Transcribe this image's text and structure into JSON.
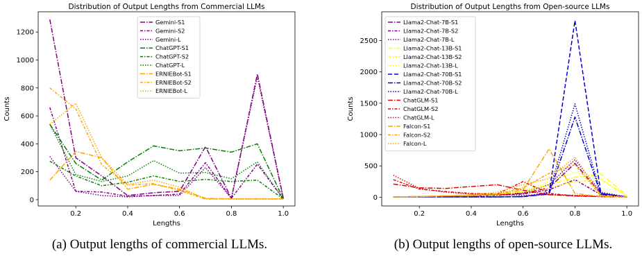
{
  "captions": [
    "(a) Output lengths of commercial LLMs.",
    "(b) Output lengths of open-source LLMs."
  ],
  "chart_data": [
    {
      "type": "line",
      "title": "Distribution of Output Lengths from Commercial LLMs",
      "xlabel": "Lengths",
      "ylabel": "Counts",
      "xlim": [
        0.055,
        1.045
      ],
      "ylim": [
        -45,
        1345
      ],
      "xticks": [
        0.2,
        0.4,
        0.6,
        0.8,
        1.0
      ],
      "xtick_labels": [
        "0.2",
        "0.4",
        "0.6",
        "0.8",
        "1.0"
      ],
      "yticks": [
        0,
        200,
        400,
        600,
        800,
        1000,
        1200
      ],
      "ytick_labels": [
        "0",
        "200",
        "400",
        "600",
        "800",
        "1000",
        "1200"
      ],
      "legend": "upper-center",
      "x": [
        0.1,
        0.2,
        0.3,
        0.4,
        0.5,
        0.6,
        0.7,
        0.8,
        0.9,
        1.0
      ],
      "series": [
        {
          "name": "Gemini-S1",
          "color": "#800080",
          "dash": "dashdot",
          "values": [
            1290,
            300,
            170,
            30,
            50,
            60,
            380,
            10,
            900,
            10
          ]
        },
        {
          "name": "Gemini-S2",
          "color": "#800080",
          "dash": "dashdot2",
          "values": [
            660,
            60,
            55,
            25,
            30,
            40,
            265,
            10,
            255,
            5
          ]
        },
        {
          "name": "Gemini-L",
          "color": "#800080",
          "dash": "dotted",
          "values": [
            310,
            60,
            30,
            20,
            30,
            30,
            230,
            10,
            880,
            5
          ]
        },
        {
          "name": "ChatGPT-S1",
          "color": "#008000",
          "dash": "dashdot",
          "values": [
            540,
            260,
            140,
            270,
            385,
            350,
            370,
            340,
            400,
            5
          ]
        },
        {
          "name": "ChatGPT-S2",
          "color": "#008000",
          "dash": "dashdot2",
          "values": [
            275,
            170,
            100,
            125,
            170,
            130,
            145,
            130,
            140,
            5
          ]
        },
        {
          "name": "ChatGPT-L",
          "color": "#008000",
          "dash": "dotted",
          "values": [
            540,
            180,
            130,
            170,
            280,
            190,
            195,
            150,
            270,
            5
          ]
        },
        {
          "name": "ERNIEBot-S1",
          "color": "#FFA500",
          "dash": "dashdot",
          "values": [
            140,
            345,
            300,
            75,
            110,
            75,
            10,
            5,
            5,
            5
          ]
        },
        {
          "name": "ERNIEBot-S2",
          "color": "#FFA500",
          "dash": "dashdot2",
          "values": [
            800,
            650,
            250,
            105,
            115,
            65,
            5,
            5,
            5,
            5
          ]
        },
        {
          "name": "ERNIEBot-L",
          "color": "#FFA500",
          "dash": "dotted",
          "values": [
            540,
            690,
            300,
            110,
            140,
            90,
            5,
            5,
            5,
            5
          ]
        }
      ]
    },
    {
      "type": "line",
      "title": "Distribution of Output Lengths from Open-source LLMs",
      "xlabel": "Lengths",
      "ylabel": "Counts",
      "xlim": [
        0.055,
        1.045
      ],
      "ylim": [
        -140,
        2960
      ],
      "xticks": [
        0.2,
        0.4,
        0.6,
        0.8,
        1.0
      ],
      "xtick_labels": [
        "0.2",
        "0.4",
        "0.6",
        "0.8",
        "1.0"
      ],
      "yticks": [
        0,
        500,
        1000,
        1500,
        2000,
        2500
      ],
      "ytick_labels": [
        "0",
        "500",
        "1000",
        "1500",
        "2000",
        "2500"
      ],
      "legend": "upper-left",
      "x": [
        0.1,
        0.2,
        0.3,
        0.4,
        0.5,
        0.6,
        0.7,
        0.8,
        0.9,
        1.0
      ],
      "series": [
        {
          "name": "Llama2-Chat-7B-S1",
          "color": "#800080",
          "dash": "dashdot",
          "values": [
            5,
            10,
            20,
            30,
            40,
            60,
            150,
            540,
            60,
            5
          ]
        },
        {
          "name": "Llama2-Chat-7B-S2",
          "color": "#800080",
          "dash": "dashdot2",
          "values": [
            5,
            10,
            15,
            20,
            30,
            50,
            120,
            280,
            40,
            5
          ]
        },
        {
          "name": "Llama2-Chat-7B-L",
          "color": "#800080",
          "dash": "dotted",
          "values": [
            5,
            10,
            20,
            25,
            40,
            70,
            200,
            600,
            80,
            5
          ]
        },
        {
          "name": "Llama2-Chat-13B-S1",
          "color": "#FFFF00",
          "dash": "dashdot",
          "values": [
            5,
            10,
            20,
            30,
            60,
            100,
            200,
            320,
            370,
            30
          ]
        },
        {
          "name": "Llama2-Chat-13B-S2",
          "color": "#FFFF00",
          "dash": "dashdot2",
          "values": [
            5,
            10,
            15,
            25,
            50,
            80,
            150,
            250,
            280,
            20
          ]
        },
        {
          "name": "Llama2-Chat-13B-L",
          "color": "#FFFF00",
          "dash": "dotted",
          "values": [
            5,
            10,
            20,
            30,
            50,
            90,
            250,
            400,
            300,
            10
          ]
        },
        {
          "name": "Llama2-Chat-70B-S1",
          "color": "#0000CD",
          "dash": "dashed",
          "values": [
            5,
            5,
            5,
            5,
            5,
            10,
            60,
            2820,
            60,
            5
          ]
        },
        {
          "name": "Llama2-Chat-70B-S2",
          "color": "#0000CD",
          "dash": "dashdot",
          "values": [
            5,
            5,
            5,
            5,
            5,
            10,
            50,
            1280,
            40,
            5
          ]
        },
        {
          "name": "Llama2-Chat-70B-L",
          "color": "#0000CD",
          "dash": "dotted",
          "values": [
            5,
            5,
            5,
            5,
            5,
            10,
            80,
            1490,
            50,
            5
          ]
        },
        {
          "name": "ChatGLM-S1",
          "color": "#E00000",
          "dash": "dashdot",
          "values": [
            210,
            150,
            140,
            170,
            200,
            110,
            40,
            20,
            10,
            5
          ]
        },
        {
          "name": "ChatGLM-S2",
          "color": "#E00000",
          "dash": "dashdot2",
          "values": [
            280,
            130,
            90,
            60,
            50,
            250,
            60,
            20,
            10,
            5
          ]
        },
        {
          "name": "ChatGLM-L",
          "color": "#E00000",
          "dash": "dotted",
          "values": [
            350,
            140,
            80,
            50,
            40,
            30,
            40,
            30,
            20,
            5
          ]
        },
        {
          "name": "Falcon-S1",
          "color": "#FFA500",
          "dash": "dashdot",
          "values": [
            5,
            10,
            20,
            30,
            40,
            120,
            770,
            60,
            10,
            5
          ]
        },
        {
          "name": "Falcon-S2",
          "color": "#FFA500",
          "dash": "dashdot2",
          "values": [
            5,
            10,
            20,
            30,
            50,
            150,
            380,
            520,
            20,
            5
          ]
        },
        {
          "name": "Falcon-L",
          "color": "#FFA500",
          "dash": "dotted",
          "values": [
            5,
            10,
            20,
            40,
            80,
            200,
            300,
            640,
            30,
            5
          ]
        }
      ]
    }
  ]
}
